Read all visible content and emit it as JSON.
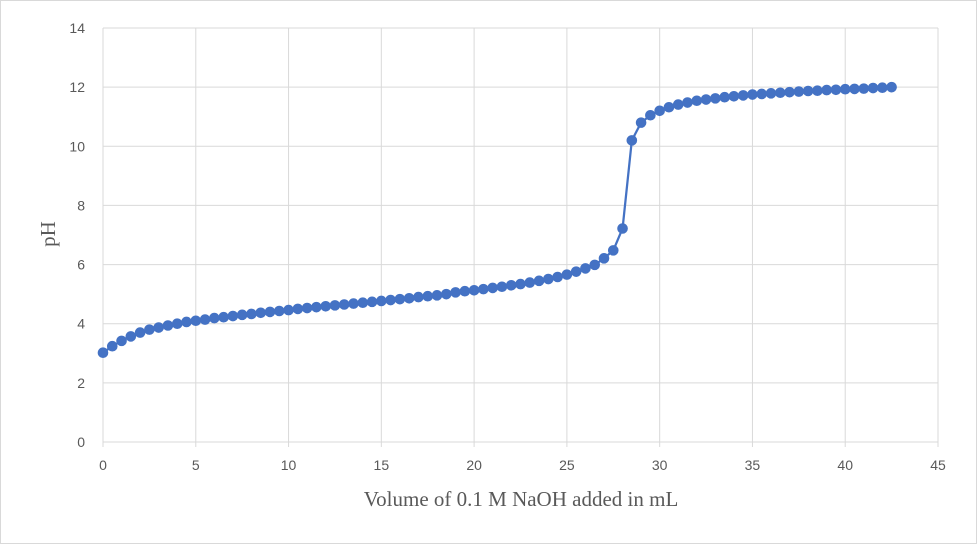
{
  "chart_data": {
    "type": "line",
    "title": "",
    "xlabel": "Volume of 0.1 M NaOH added in mL",
    "ylabel": "pH",
    "xlim": [
      0,
      45
    ],
    "ylim": [
      0,
      14
    ],
    "x_ticks": [
      0,
      5,
      10,
      15,
      20,
      25,
      30,
      35,
      40,
      45
    ],
    "y_ticks": [
      0,
      2,
      4,
      6,
      8,
      10,
      12,
      14
    ],
    "grid": true,
    "legend": "none",
    "series": [
      {
        "color": "#4472c4",
        "marker": "circle",
        "points": [
          [
            0,
            3.02
          ],
          [
            0.5,
            3.24
          ],
          [
            1,
            3.42
          ],
          [
            1.5,
            3.57
          ],
          [
            2,
            3.7
          ],
          [
            2.5,
            3.8
          ],
          [
            3,
            3.87
          ],
          [
            3.5,
            3.94
          ],
          [
            4,
            4.0
          ],
          [
            4.5,
            4.06
          ],
          [
            5,
            4.1
          ],
          [
            5.5,
            4.14
          ],
          [
            6,
            4.19
          ],
          [
            6.5,
            4.22
          ],
          [
            7,
            4.26
          ],
          [
            7.5,
            4.3
          ],
          [
            8,
            4.33
          ],
          [
            8.5,
            4.37
          ],
          [
            9,
            4.4
          ],
          [
            9.5,
            4.43
          ],
          [
            10,
            4.46
          ],
          [
            10.5,
            4.5
          ],
          [
            11,
            4.53
          ],
          [
            11.5,
            4.56
          ],
          [
            12,
            4.59
          ],
          [
            12.5,
            4.62
          ],
          [
            13,
            4.65
          ],
          [
            13.5,
            4.68
          ],
          [
            14,
            4.71
          ],
          [
            14.5,
            4.74
          ],
          [
            15,
            4.77
          ],
          [
            15.5,
            4.8
          ],
          [
            16,
            4.83
          ],
          [
            16.5,
            4.86
          ],
          [
            17,
            4.9
          ],
          [
            17.5,
            4.93
          ],
          [
            18,
            4.96
          ],
          [
            18.5,
            5.0
          ],
          [
            19,
            5.06
          ],
          [
            19.5,
            5.1
          ],
          [
            20,
            5.13
          ],
          [
            20.5,
            5.17
          ],
          [
            21,
            5.21
          ],
          [
            21.5,
            5.25
          ],
          [
            22,
            5.3
          ],
          [
            22.5,
            5.34
          ],
          [
            23,
            5.39
          ],
          [
            23.5,
            5.45
          ],
          [
            24,
            5.51
          ],
          [
            24.5,
            5.58
          ],
          [
            25,
            5.66
          ],
          [
            25.5,
            5.76
          ],
          [
            26,
            5.87
          ],
          [
            26.5,
            5.99
          ],
          [
            27,
            6.21
          ],
          [
            27.5,
            6.48
          ],
          [
            28,
            7.22
          ],
          [
            28.5,
            10.2
          ],
          [
            29,
            10.8
          ],
          [
            29.5,
            11.05
          ],
          [
            30,
            11.2
          ],
          [
            30.5,
            11.32
          ],
          [
            31,
            11.41
          ],
          [
            31.5,
            11.48
          ],
          [
            32,
            11.54
          ],
          [
            32.5,
            11.58
          ],
          [
            33,
            11.62
          ],
          [
            33.5,
            11.66
          ],
          [
            34,
            11.69
          ],
          [
            34.5,
            11.72
          ],
          [
            35,
            11.75
          ],
          [
            35.5,
            11.77
          ],
          [
            36,
            11.79
          ],
          [
            36.5,
            11.81
          ],
          [
            37,
            11.83
          ],
          [
            37.5,
            11.85
          ],
          [
            38,
            11.87
          ],
          [
            38.5,
            11.88
          ],
          [
            39,
            11.9
          ],
          [
            39.5,
            11.91
          ],
          [
            40,
            11.93
          ],
          [
            40.5,
            11.94
          ],
          [
            41,
            11.95
          ],
          [
            41.5,
            11.97
          ],
          [
            42,
            11.98
          ],
          [
            42.5,
            12.0
          ]
        ]
      }
    ]
  }
}
